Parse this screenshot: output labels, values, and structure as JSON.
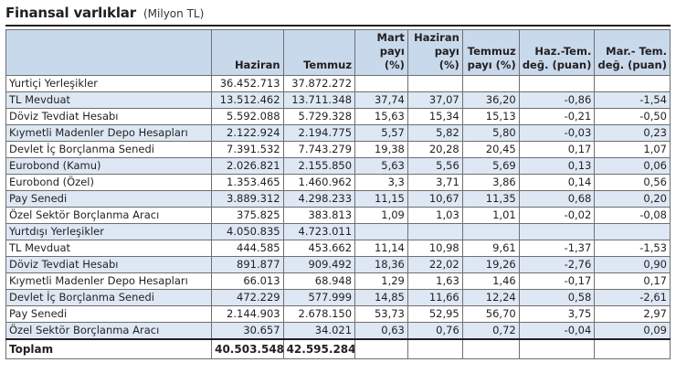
{
  "title": "Finansal varlıklar",
  "unit": "(Milyon TL)",
  "columns": [
    "",
    "Haziran",
    "Temmuz",
    "Mart payı (%)",
    "Haziran payı (%)",
    "Temmuz payı (%)",
    "Haz.-Tem. değ. (puan)",
    "Mar.- Tem. değ. (puan)"
  ],
  "rows": [
    [
      "Yurtiçi Yerleşikler",
      "36.452.713",
      "37.872.272",
      "",
      "",
      "",
      "",
      ""
    ],
    [
      "TL Mevduat",
      "13.512.462",
      "13.711.348",
      "37,74",
      "37,07",
      "36,20",
      "-0,86",
      "-1,54"
    ],
    [
      "Döviz Tevdiat Hesabı",
      "5.592.088",
      "5.729.328",
      "15,63",
      "15,34",
      "15,13",
      "-0,21",
      "-0,50"
    ],
    [
      "Kıymetli Madenler Depo Hesapları",
      "2.122.924",
      "2.194.775",
      "5,57",
      "5,82",
      "5,80",
      "-0,03",
      "0,23"
    ],
    [
      "Devlet İç Borçlanma Senedi",
      "7.391.532",
      "7.743.279",
      "19,38",
      "20,28",
      "20,45",
      "0,17",
      "1,07"
    ],
    [
      "Eurobond (Kamu)",
      "2.026.821",
      "2.155.850",
      "5,63",
      "5,56",
      "5,69",
      "0,13",
      "0,06"
    ],
    [
      "Eurobond (Özel)",
      "1.353.465",
      "1.460.962",
      "3,3",
      "3,71",
      "3,86",
      "0,14",
      "0,56"
    ],
    [
      "Pay Senedi",
      "3.889.312",
      "4.298.233",
      "11,15",
      "10,67",
      "11,35",
      "0,68",
      "0,20"
    ],
    [
      "Özel Sektör Borçlanma Aracı",
      "375.825",
      "383.813",
      "1,09",
      "1,03",
      "1,01",
      "-0,02",
      "-0,08"
    ],
    [
      "Yurtdışı Yerleşikler",
      "4.050.835",
      "4.723.011",
      "",
      "",
      "",
      "",
      ""
    ],
    [
      "TL Mevduat",
      "444.585",
      "453.662",
      "11,14",
      "10,98",
      "9,61",
      "-1,37",
      "-1,53"
    ],
    [
      "Döviz Tevdiat Hesabı",
      "891.877",
      "909.492",
      "18,36",
      "22,02",
      "19,26",
      "-2,76",
      "0,90"
    ],
    [
      "Kıymetli Madenler Depo Hesapları",
      "66.013",
      "68.948",
      "1,29",
      "1,63",
      "1,46",
      "-0,17",
      "0,17"
    ],
    [
      "Devlet İç Borçlanma Senedi",
      "472.229",
      "577.999",
      "14,85",
      "11,66",
      "12,24",
      "0,58",
      "-2,61"
    ],
    [
      "Pay Senedi",
      "2.144.903",
      "2.678.150",
      "53,73",
      "52,95",
      "56,70",
      "3,75",
      "2,97"
    ],
    [
      "Özel Sektör Borçlanma Aracı",
      "30.657",
      "34.021",
      "0,63",
      "0,76",
      "0,72",
      "-0,04",
      "0,09"
    ]
  ],
  "total": [
    "Toplam",
    "40.503.548",
    "42.595.284",
    "",
    "",
    "",
    "",
    ""
  ],
  "colors": {
    "header_bg": "#c9d9ec",
    "stripe_bg": "#dde8f4",
    "text": "#231f20"
  }
}
